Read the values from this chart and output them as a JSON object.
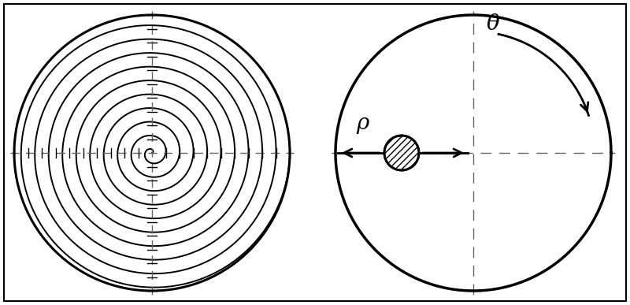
{
  "bg_color": "#ffffff",
  "line_color": "#000000",
  "dash_color": "#666666",
  "border_lw": 1.5,
  "spiral_turns": 10,
  "n_turns": 10,
  "rho_label": "ρ",
  "theta_label": "θ",
  "rho_fontsize": 20,
  "theta_fontsize": 20,
  "fig_width": 8.0,
  "fig_height": 3.87
}
